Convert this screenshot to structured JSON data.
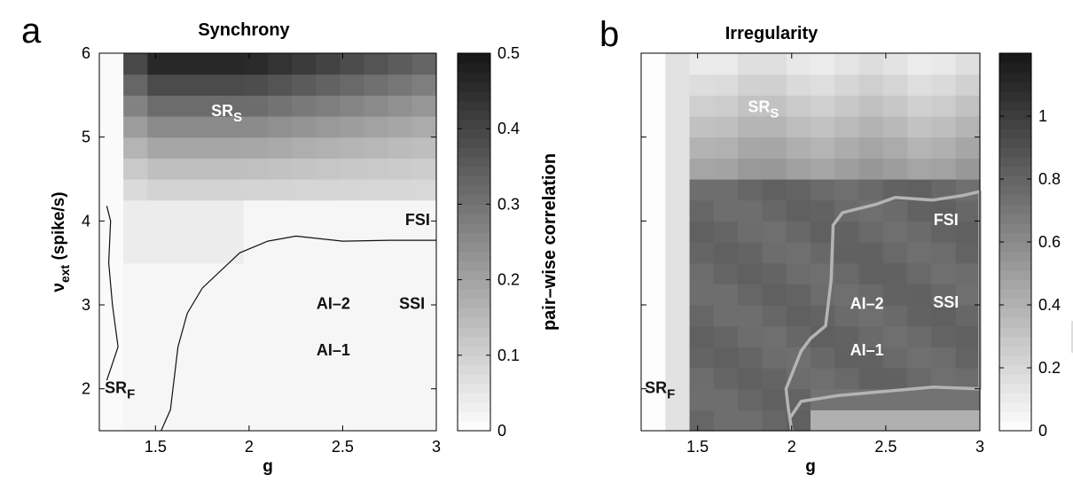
{
  "chart_data": [
    {
      "type": "heatmap",
      "panel_letter": "a",
      "title": "Synchrony",
      "xlabel": "g",
      "ylabel_main": "ν",
      "ylabel_sub": "ext",
      "ylabel_rest": " (spike/s)",
      "xlim": [
        1.2,
        3.0
      ],
      "ylim": [
        1.5,
        6.0
      ],
      "xticks": [
        "1.5",
        "2",
        "2.5",
        "3"
      ],
      "yticks": [
        "2",
        "3",
        "4",
        "5",
        "6"
      ],
      "colorbar": {
        "label": "pair–wise correlation",
        "range": [
          0,
          0.5
        ],
        "ticks": [
          "0",
          "0.1",
          "0.2",
          "0.3",
          "0.4",
          "0.5"
        ]
      },
      "annotations": [
        {
          "text": "SR",
          "sub": "S",
          "g": 1.88,
          "nu": 5.25,
          "color": "light"
        },
        {
          "text": "FSI",
          "g": 2.9,
          "nu": 3.95,
          "color": "dark"
        },
        {
          "text": "AI–2",
          "g": 2.45,
          "nu": 2.95,
          "color": "dark"
        },
        {
          "text": "SSI",
          "g": 2.87,
          "nu": 2.95,
          "color": "dark"
        },
        {
          "text": "AI–1",
          "g": 2.45,
          "nu": 2.4,
          "color": "dark"
        },
        {
          "text": "SR",
          "sub": "F",
          "g": 1.31,
          "nu": 1.95,
          "color": "dark"
        }
      ],
      "boundaries": [
        {
          "name": "SR-F boundary",
          "points": [
            [
              1.24,
              4.18
            ],
            [
              1.26,
              4.0
            ],
            [
              1.25,
              3.5
            ],
            [
              1.27,
              3.0
            ],
            [
              1.3,
              2.5
            ],
            [
              1.27,
              2.3
            ],
            [
              1.24,
              2.1
            ]
          ]
        },
        {
          "name": "AI boundary",
          "points": [
            [
              1.53,
              1.5
            ],
            [
              1.58,
              1.75
            ],
            [
              1.62,
              2.5
            ],
            [
              1.67,
              2.9
            ],
            [
              1.75,
              3.2
            ],
            [
              1.95,
              3.62
            ],
            [
              2.1,
              3.76
            ],
            [
              2.25,
              3.82
            ],
            [
              2.5,
              3.76
            ],
            [
              2.75,
              3.77
            ],
            [
              3.0,
              3.77
            ]
          ]
        }
      ]
    },
    {
      "type": "heatmap",
      "panel_letter": "b",
      "title": "Irregularity",
      "xlabel": "g",
      "xlim": [
        1.2,
        3.0
      ],
      "ylim": [
        1.5,
        6.0
      ],
      "xticks": [
        "1.5",
        "2",
        "2.5",
        "3"
      ],
      "colorbar": {
        "range": [
          0,
          1.2
        ],
        "ticks": [
          "0",
          "0.2",
          "0.4",
          "0.6",
          "0.8",
          "1"
        ]
      },
      "annotations": [
        {
          "text": "SR",
          "sub": "S",
          "g": 1.85,
          "nu": 5.3,
          "color": "light"
        },
        {
          "text": "FSI",
          "g": 2.82,
          "nu": 3.95,
          "color": "light"
        },
        {
          "text": "AI–2",
          "g": 2.4,
          "nu": 2.95,
          "color": "light"
        },
        {
          "text": "SSI",
          "g": 2.82,
          "nu": 2.97,
          "color": "light"
        },
        {
          "text": "AI–1",
          "g": 2.4,
          "nu": 2.4,
          "color": "light"
        },
        {
          "text": "SR",
          "sub": "F",
          "g": 1.3,
          "nu": 1.95,
          "color": "dark"
        }
      ],
      "boundaries": [
        {
          "name": "AI boundary",
          "points": [
            [
              2.0,
              1.5
            ],
            [
              1.99,
              1.65
            ],
            [
              2.05,
              1.85
            ],
            [
              2.25,
              1.92
            ],
            [
              2.5,
              1.97
            ],
            [
              2.75,
              2.02
            ],
            [
              3.0,
              2.0
            ],
            [
              3.0,
              4.35
            ],
            [
              2.9,
              4.3
            ],
            [
              2.75,
              4.25
            ],
            [
              2.55,
              4.28
            ],
            [
              2.45,
              4.2
            ],
            [
              2.27,
              4.1
            ],
            [
              2.22,
              3.95
            ],
            [
              2.21,
              3.3
            ],
            [
              2.18,
              2.75
            ],
            [
              2.1,
              2.6
            ],
            [
              2.05,
              2.45
            ],
            [
              1.97,
              2.0
            ],
            [
              1.98,
              1.8
            ],
            [
              2.0,
              1.5
            ]
          ]
        }
      ]
    }
  ]
}
